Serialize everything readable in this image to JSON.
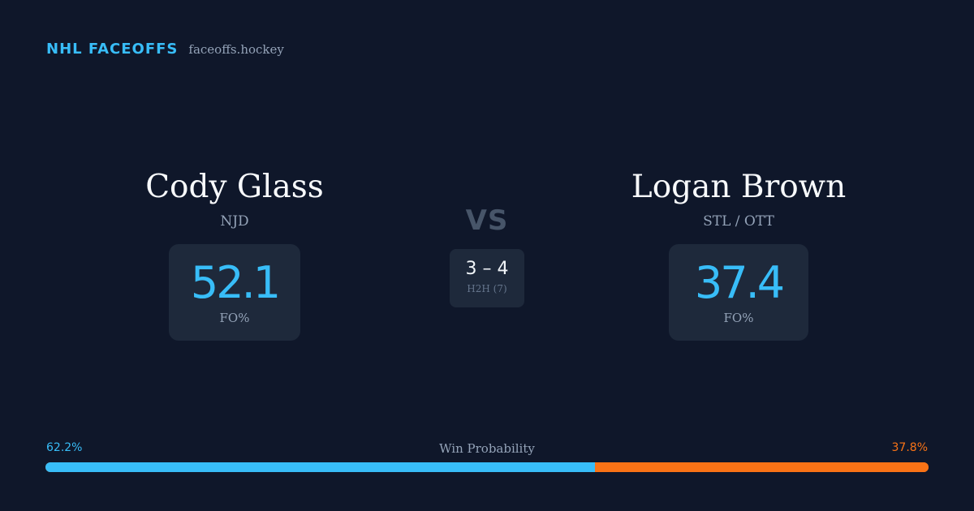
{
  "brand": {
    "title": "NHL FACEOFFS",
    "url": "faceoffs.hockey"
  },
  "players": {
    "left": {
      "name": "Cody Glass",
      "team": "NJD",
      "stat_value": "52.1",
      "stat_label": "FO%"
    },
    "right": {
      "name": "Logan Brown",
      "team": "STL / OTT",
      "stat_value": "37.4",
      "stat_label": "FO%"
    }
  },
  "versus": {
    "label": "VS",
    "h2h_score": "3 – 4",
    "h2h_label": "H2H (7)"
  },
  "win_probability": {
    "title": "Win Probability",
    "left_label": "62.2%",
    "right_label": "37.8%",
    "left_value": 62.2,
    "right_value": 37.8,
    "left_color": "#38bdf8",
    "right_color": "#f97316"
  }
}
